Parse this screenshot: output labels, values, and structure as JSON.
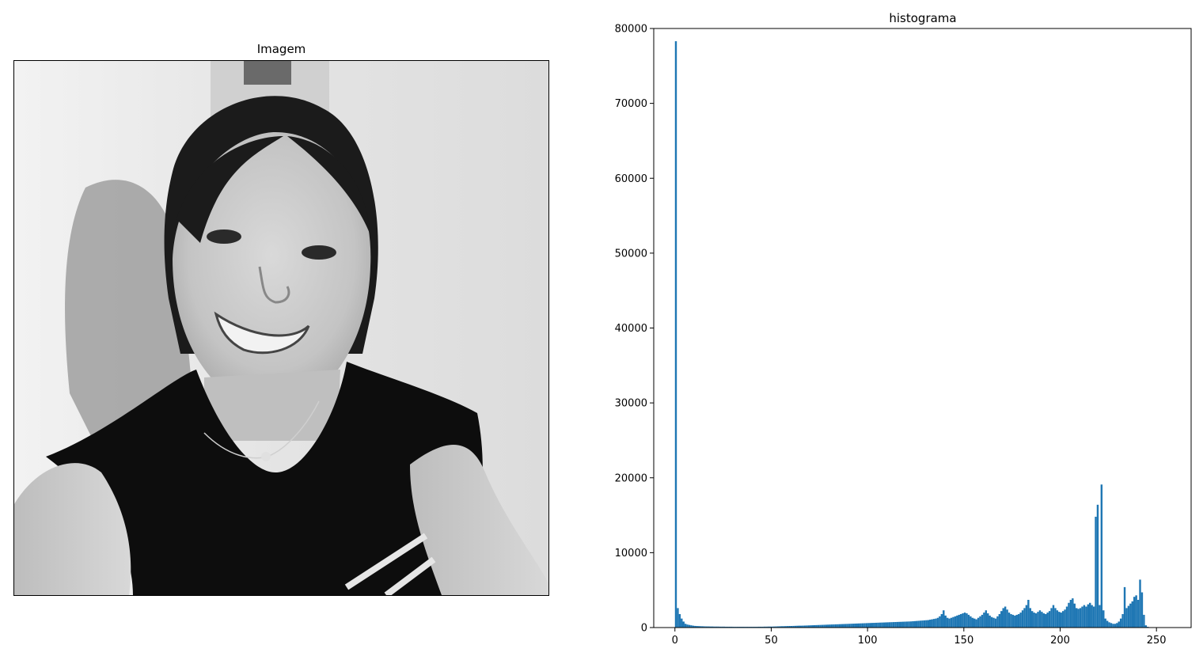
{
  "left_panel": {
    "title": "Imagem"
  },
  "chart_data": {
    "type": "bar",
    "title": "histograma",
    "xlabel": "",
    "ylabel": "",
    "xlim": [
      -11,
      268
    ],
    "ylim": [
      0,
      80000
    ],
    "x_ticks": [
      0,
      50,
      100,
      150,
      200,
      250
    ],
    "y_ticks": [
      0,
      10000,
      20000,
      30000,
      40000,
      50000,
      60000,
      70000,
      80000
    ],
    "bar_color": "#1f77b4",
    "grid": false,
    "legend": "none",
    "bins_start": 0,
    "bin_width": 1,
    "values": [
      78300,
      2600,
      1800,
      1200,
      800,
      500,
      400,
      350,
      300,
      250,
      220,
      200,
      190,
      180,
      170,
      160,
      150,
      150,
      140,
      140,
      130,
      130,
      130,
      120,
      120,
      120,
      110,
      110,
      110,
      110,
      100,
      100,
      100,
      100,
      100,
      100,
      100,
      100,
      100,
      100,
      100,
      100,
      100,
      110,
      110,
      110,
      120,
      120,
      130,
      130,
      130,
      140,
      150,
      160,
      170,
      180,
      180,
      190,
      200,
      210,
      210,
      220,
      230,
      240,
      250,
      250,
      260,
      270,
      280,
      290,
      300,
      310,
      320,
      330,
      340,
      350,
      360,
      370,
      380,
      390,
      400,
      410,
      420,
      430,
      440,
      450,
      460,
      470,
      480,
      490,
      500,
      510,
      520,
      530,
      540,
      550,
      560,
      570,
      580,
      590,
      600,
      610,
      620,
      630,
      640,
      650,
      660,
      670,
      680,
      690,
      700,
      710,
      720,
      730,
      740,
      750,
      760,
      770,
      780,
      790,
      800,
      810,
      820,
      840,
      860,
      880,
      900,
      920,
      940,
      960,
      980,
      1000,
      1050,
      1100,
      1150,
      1200,
      1300,
      1500,
      1800,
      2300,
      1600,
      1300,
      1200,
      1300,
      1400,
      1500,
      1600,
      1700,
      1800,
      1900,
      2000,
      1900,
      1700,
      1500,
      1300,
      1200,
      1100,
      1300,
      1500,
      1700,
      2000,
      2300,
      1900,
      1600,
      1400,
      1300,
      1200,
      1500,
      1800,
      2200,
      2600,
      2800,
      2400,
      2000,
      1800,
      1700,
      1600,
      1700,
      1800,
      2000,
      2300,
      2600,
      3000,
      3700,
      2600,
      2200,
      2000,
      1900,
      2100,
      2300,
      2100,
      1900,
      1800,
      2000,
      2200,
      2600,
      3000,
      2600,
      2300,
      2100,
      2000,
      2200,
      2400,
      2800,
      3300,
      3700,
      3900,
      3200,
      2600,
      2500,
      2600,
      2800,
      3000,
      2800,
      3100,
      3300,
      3000,
      2800,
      14800,
      16400,
      3000,
      19100,
      2300,
      1200,
      900,
      700,
      600,
      500,
      500,
      600,
      800,
      1200,
      1800,
      5400,
      2600,
      2900,
      3200,
      3500,
      4100,
      4300,
      3700,
      6400,
      4700,
      1700,
      300,
      100,
      50,
      20,
      10
    ]
  }
}
